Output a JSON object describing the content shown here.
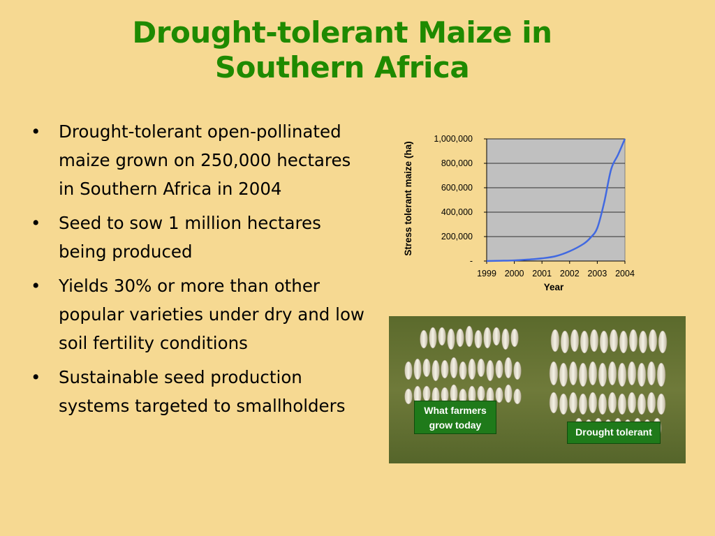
{
  "slide": {
    "title_line1": "Drought-tolerant Maize in",
    "title_line2": "Southern Africa",
    "bullets": [
      "Drought-tolerant open-pollinated maize grown on 250,000 hectares in Southern Africa in 2004",
      "Seed to sow 1 million hectares being produced",
      "Yields 30% or more than other popular varieties under dry and low soil fertility conditions",
      "Sustainable seed production systems targeted to smallholders"
    ],
    "bullet_symbol": "•"
  },
  "photo": {
    "caption_left": "What farmers grow today",
    "caption_right": "Drought tolerant"
  },
  "chart_data": {
    "type": "line",
    "xlabel": "Year",
    "ylabel": "Stress tolerant maize (ha)",
    "categories": [
      "1999",
      "2000",
      "2001",
      "2002",
      "2003",
      "2004"
    ],
    "ylim": [
      0,
      1000000
    ],
    "yticks": [
      0,
      200000,
      400000,
      600000,
      800000,
      1000000
    ],
    "ytick_labels": [
      "-",
      "200,000",
      "400,000",
      "600,000",
      "800,000",
      "1,000,000"
    ],
    "grid": true,
    "series": [
      {
        "x": [
          1999,
          1999.5,
          2000,
          2000.5,
          2001,
          2001.5,
          2002,
          2002.5,
          2002.75,
          2003,
          2003.25,
          2003.5,
          2003.75,
          2004
        ],
        "values": [
          0,
          2000,
          5000,
          12000,
          22000,
          40000,
          80000,
          140000,
          190000,
          270000,
          480000,
          750000,
          870000,
          1000000
        ]
      }
    ],
    "colors": {
      "line": "#4169e1",
      "plot_bg": "#c0c0c0"
    }
  }
}
